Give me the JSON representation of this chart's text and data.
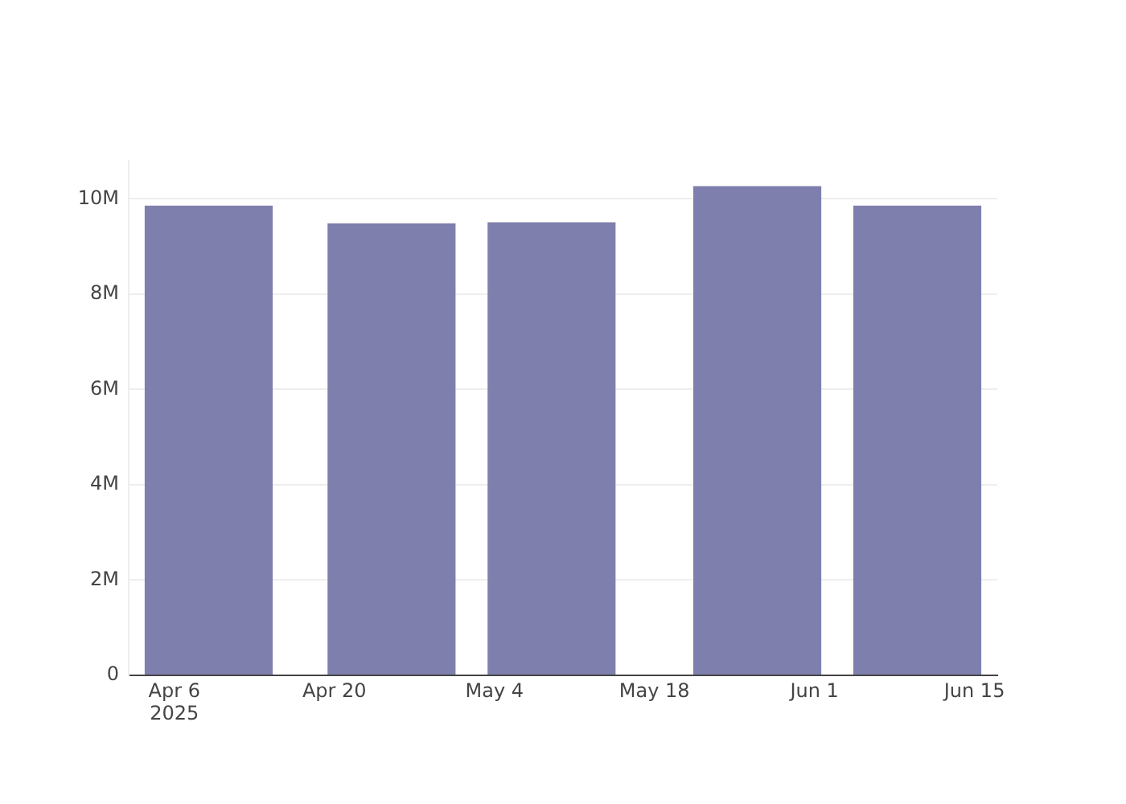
{
  "chart_data": {
    "type": "bar",
    "x": [
      "2025-04-09",
      "2025-04-25",
      "2025-05-09",
      "2025-05-27",
      "2025-06-10"
    ],
    "values": [
      9860000,
      9490000,
      9510000,
      10270000,
      9860000
    ],
    "color": "#7f7fae",
    "xlim": [
      "2025-04-02",
      "2025-06-17"
    ],
    "xticks": [
      {
        "value": "2025-04-06",
        "label": "Apr 6\n2025"
      },
      {
        "value": "2025-04-20",
        "label": "Apr 20"
      },
      {
        "value": "2025-05-04",
        "label": "May 4"
      },
      {
        "value": "2025-05-18",
        "label": "May 18"
      },
      {
        "value": "2025-06-01",
        "label": "Jun 1"
      },
      {
        "value": "2025-06-15",
        "label": "Jun 15"
      }
    ],
    "ylim": [
      0,
      10800000
    ],
    "yticks": [
      {
        "value": 0,
        "label": "0"
      },
      {
        "value": 2000000,
        "label": "2M"
      },
      {
        "value": 4000000,
        "label": "4M"
      },
      {
        "value": 6000000,
        "label": "6M"
      },
      {
        "value": 8000000,
        "label": "8M"
      },
      {
        "value": 10000000,
        "label": "10M"
      }
    ],
    "grid": "y"
  }
}
